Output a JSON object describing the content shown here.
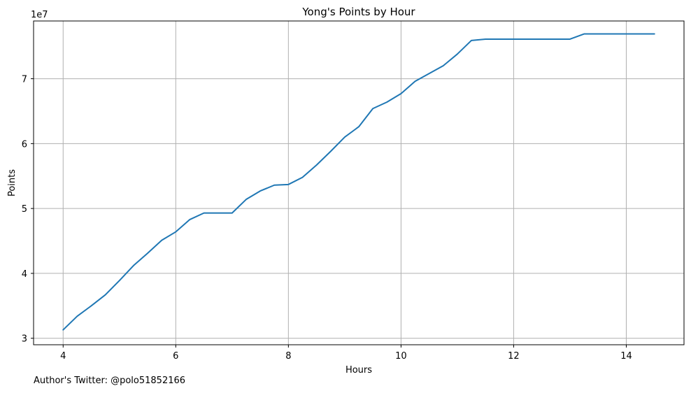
{
  "chart_data": {
    "type": "line",
    "title": "Yong's Points by Hour",
    "xlabel": "Hours",
    "ylabel": "Points",
    "y_offset_label": "1e7",
    "y_scale_factor": 10000000,
    "xlim": [
      3.475,
      15.025
    ],
    "ylim": [
      29000000,
      78900000
    ],
    "x_ticks": [
      4,
      6,
      8,
      10,
      12,
      14
    ],
    "x_tick_labels": [
      "4",
      "6",
      "8",
      "10",
      "12",
      "14"
    ],
    "y_ticks": [
      30000000,
      40000000,
      50000000,
      60000000,
      70000000
    ],
    "y_tick_labels": [
      "3",
      "4",
      "5",
      "6",
      "7"
    ],
    "grid": true,
    "series": [
      {
        "color": "#1f77b4",
        "x": [
          4.0,
          4.25,
          4.5,
          4.75,
          5.0,
          5.25,
          5.5,
          5.75,
          6.0,
          6.25,
          6.5,
          6.75,
          7.0,
          7.25,
          7.5,
          7.75,
          8.0,
          8.25,
          8.5,
          8.75,
          9.0,
          9.25,
          9.5,
          9.75,
          10.0,
          10.25,
          10.5,
          10.75,
          11.0,
          11.25,
          11.5,
          11.75,
          12.0,
          12.25,
          12.5,
          12.75,
          13.0,
          13.25,
          13.5,
          13.75,
          14.0,
          14.25,
          14.5
        ],
        "y": [
          31300000,
          33400000,
          35000000,
          36700000,
          38900000,
          41200000,
          43100000,
          45100000,
          46400000,
          48300000,
          49300000,
          49300000,
          49300000,
          51400000,
          52700000,
          53600000,
          53700000,
          54800000,
          56700000,
          58800000,
          61000000,
          62600000,
          65400000,
          66400000,
          67700000,
          69600000,
          70800000,
          72000000,
          73800000,
          75900000,
          76100000,
          76100000,
          76100000,
          76100000,
          76100000,
          76100000,
          76100000,
          76900000,
          76900000,
          76900000,
          76900000,
          76900000,
          76900000
        ]
      }
    ]
  },
  "footer": {
    "text": "Author's Twitter: @polo51852166"
  }
}
